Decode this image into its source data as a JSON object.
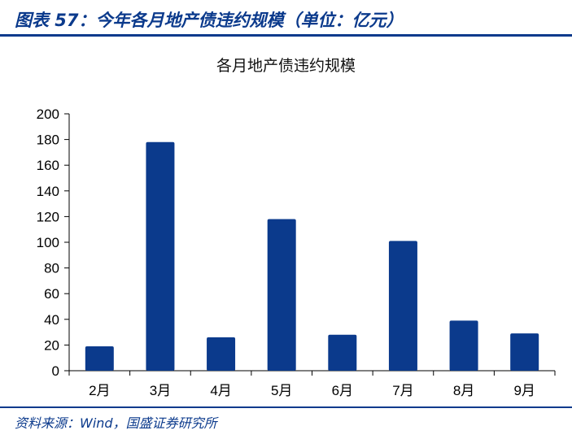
{
  "figure": {
    "title": "图表 57：今年各月地产债违约规模（单位：亿元）",
    "source": "资料来源：Wind，国盛证券研究所"
  },
  "colors": {
    "bar": "#0b3a8c",
    "header": "#0b3a8c"
  },
  "chart_data": {
    "type": "bar",
    "title": "各月地产债违约规模",
    "xlabel": "",
    "ylabel": "",
    "categories": [
      "2月",
      "3月",
      "4月",
      "5月",
      "6月",
      "7月",
      "8月",
      "9月"
    ],
    "values": [
      19,
      178,
      26,
      118,
      28,
      101,
      39,
      29
    ],
    "ylim": [
      0,
      200
    ],
    "yticks": [
      0,
      20,
      40,
      60,
      80,
      100,
      120,
      140,
      160,
      180,
      200
    ],
    "grid": false,
    "legend": "none"
  }
}
